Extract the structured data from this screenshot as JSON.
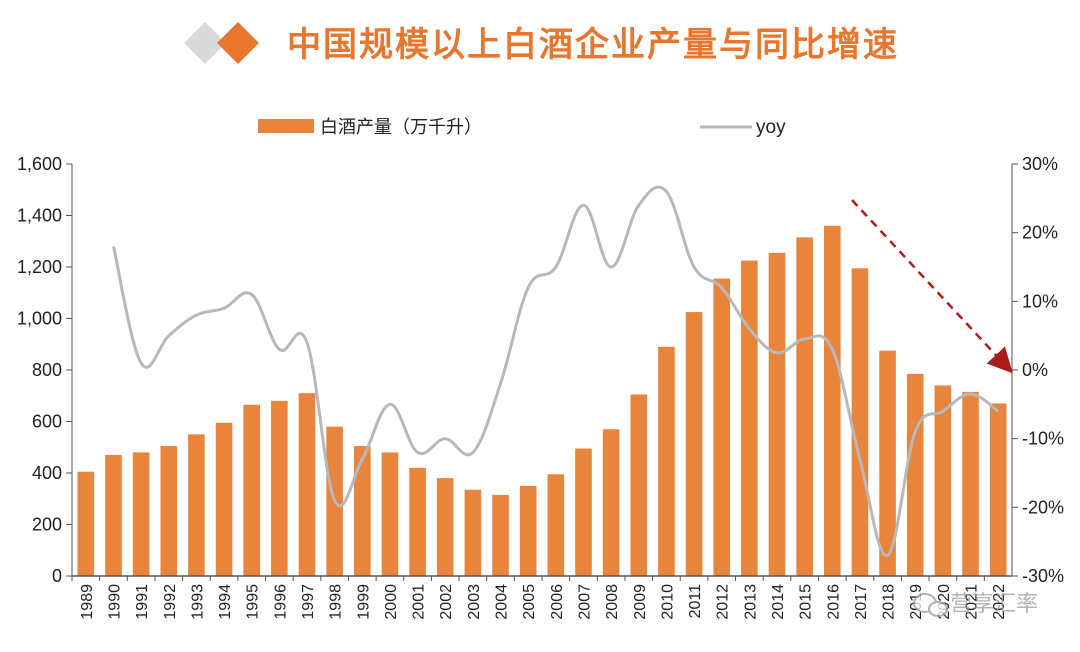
{
  "header": {
    "title": "中国规模以上白酒企业产量与同比增速",
    "colors": {
      "accent": "#e8762e",
      "muted": "#d9d9d9"
    }
  },
  "watermark": {
    "text": "营享汇率",
    "icon": "wechat-icon"
  },
  "chart_data": {
    "type": "bar",
    "categories": [
      "1989",
      "1990",
      "1991",
      "1992",
      "1993",
      "1994",
      "1995",
      "1996",
      "1997",
      "1998",
      "1999",
      "2000",
      "2001",
      "2002",
      "2003",
      "2004",
      "2005",
      "2006",
      "2007",
      "2008",
      "2009",
      "2010",
      "2011",
      "2012",
      "2013",
      "2014",
      "2015",
      "2016",
      "2017",
      "2018",
      "2019",
      "2020",
      "2021",
      "2022"
    ],
    "series": [
      {
        "name": "白酒产量（万千升）",
        "type": "bar",
        "axis": "left",
        "color": "#e8843c",
        "values": [
          405,
          470,
          480,
          505,
          550,
          595,
          665,
          680,
          710,
          580,
          505,
          480,
          420,
          380,
          335,
          315,
          350,
          395,
          495,
          570,
          705,
          890,
          1025,
          1155,
          1225,
          1255,
          1315,
          1360,
          1195,
          875,
          785,
          740,
          715,
          670
        ]
      },
      {
        "name": "yoy",
        "type": "line",
        "axis": "right",
        "color": "#b8b8b8",
        "values": [
          null,
          18,
          1,
          5,
          8,
          9,
          11,
          3,
          4,
          -19,
          -13,
          -5,
          -12,
          -10,
          -12,
          -2,
          12,
          15,
          24,
          15,
          24,
          26,
          15,
          12,
          6,
          2.5,
          4.5,
          3,
          -13,
          -27,
          -9,
          -6,
          -3.5,
          -6
        ]
      }
    ],
    "y_left": {
      "ticks": [
        "0",
        "200",
        "400",
        "600",
        "800",
        "1,000",
        "1,200",
        "1,400",
        "1,600"
      ],
      "ylim": [
        0,
        1600
      ]
    },
    "y_right": {
      "ticks": [
        "30%",
        "20%",
        "10%",
        "0%",
        "-10%",
        "-20%",
        "-30%"
      ],
      "ylim": [
        -30,
        30
      ]
    },
    "trend_arrow": {
      "color": "#a81c1c",
      "style": "dashed",
      "from_category": "2017",
      "to_category": "2022"
    },
    "legend": {
      "placement": "top",
      "entries": [
        "白酒产量（万千升）",
        "yoy"
      ]
    },
    "grid": false
  }
}
